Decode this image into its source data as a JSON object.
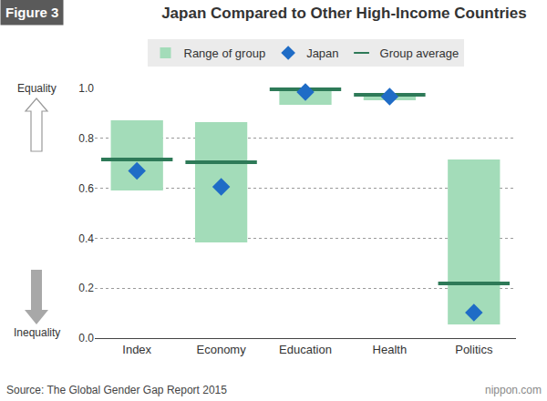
{
  "chart_data": {
    "type": "range_bar",
    "title": "Japan Compared to Other High-Income Countries",
    "annotations": {
      "figure_label": "Figure 3",
      "equality": "Equality",
      "inequality": "Inequality",
      "source": "Source: The Global Gender Gap Report 2015",
      "credit": "nippon.com"
    },
    "categories": [
      "Index",
      "Economy",
      "Education",
      "Health",
      "Politics"
    ],
    "series": [
      {
        "name": "Range of group",
        "type": "range",
        "color": "#a3dcb9",
        "low": [
          0.591,
          0.383,
          0.934,
          0.953,
          0.055
        ],
        "high": [
          0.872,
          0.865,
          1.0,
          0.982,
          0.715
        ]
      },
      {
        "name": "Japan",
        "type": "scatter",
        "marker": "diamond",
        "color": "#1f6cc6",
        "values": [
          0.67,
          0.606,
          0.985,
          0.967,
          0.102
        ]
      },
      {
        "name": "Group average",
        "type": "line",
        "marker": "line-ew",
        "color": "#2e7a58",
        "values": [
          0.715,
          0.704,
          0.996,
          0.974,
          0.219
        ]
      }
    ],
    "ylim": [
      0,
      1
    ],
    "yticks": [
      {
        "value": 0,
        "label": "0.0"
      },
      0.2,
      0.4,
      0.6,
      0.8,
      {
        "value": 1,
        "label": "1.0"
      }
    ],
    "grid": true,
    "legend": "top"
  }
}
